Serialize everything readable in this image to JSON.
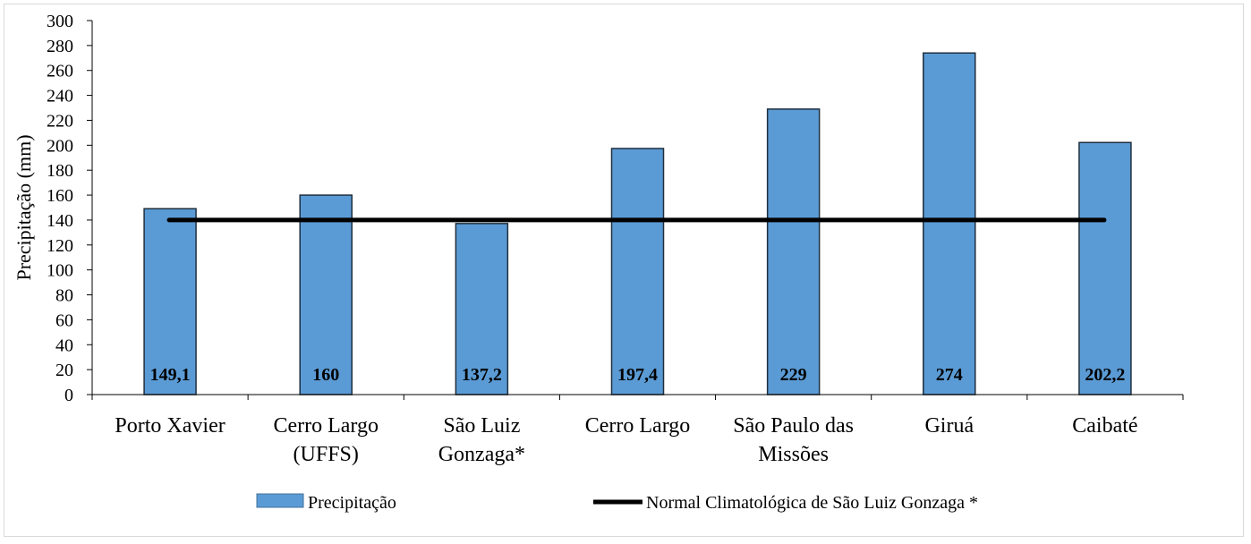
{
  "chart_data": {
    "type": "bar",
    "categories": [
      [
        "Porto Xavier"
      ],
      [
        "Cerro Largo",
        "(UFFS)"
      ],
      [
        "São Luiz",
        "Gonzaga*"
      ],
      [
        "Cerro Largo"
      ],
      [
        "São Paulo das",
        "Missões"
      ],
      [
        "Giruá"
      ],
      [
        "Caibaté"
      ]
    ],
    "series": [
      {
        "name": "Precipitação",
        "values": [
          149.1,
          160,
          137.2,
          197.4,
          229,
          274,
          202.2
        ],
        "value_labels": [
          "149,1",
          "160",
          "137,2",
          "197,4",
          "229",
          "274",
          "202,2"
        ],
        "color": "#5b9bd5"
      },
      {
        "name": "Normal Climatológica de São Luiz Gonzaga *",
        "type": "line",
        "values": [
          140,
          140,
          140,
          140,
          140,
          140,
          140
        ],
        "color": "#000000"
      }
    ],
    "title": "",
    "xlabel": "",
    "ylabel": "Precipitação  (mm)",
    "ylim": [
      0,
      300
    ],
    "yticks": [
      "0",
      "20",
      "40",
      "60",
      "80",
      "100",
      "120",
      "140",
      "160",
      "180",
      "200",
      "220",
      "240",
      "260",
      "280",
      "300"
    ],
    "grid": false,
    "legend_position": "bottom"
  }
}
